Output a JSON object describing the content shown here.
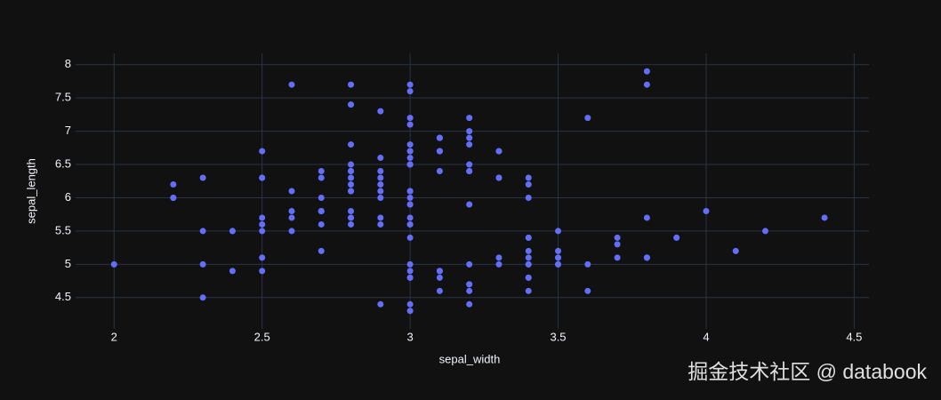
{
  "chart_data": {
    "type": "scatter",
    "x_label": "sepal_width",
    "y_label": "sepal_length",
    "watermark": "掘金技术社区 @ databook",
    "color": "#636efa",
    "grid": true,
    "xlim": [
      1.87,
      4.55
    ],
    "xticks": [
      2,
      2.5,
      3,
      3.5,
      4,
      4.5
    ],
    "ylim": [
      4.03,
      8.17
    ],
    "yticks": [
      4.5,
      5,
      5.5,
      6,
      6.5,
      7,
      7.5,
      8
    ],
    "x": [
      3.5,
      3.0,
      3.2,
      3.1,
      3.6,
      3.9,
      3.4,
      3.4,
      2.9,
      3.1,
      3.7,
      3.4,
      3.0,
      3.0,
      4.0,
      4.4,
      3.9,
      3.5,
      3.8,
      3.8,
      3.4,
      3.7,
      3.6,
      3.3,
      3.4,
      3.0,
      3.4,
      3.5,
      3.4,
      3.2,
      3.1,
      3.4,
      4.1,
      4.2,
      3.1,
      3.2,
      3.5,
      3.1,
      3.0,
      3.4,
      3.5,
      2.3,
      3.2,
      3.5,
      3.8,
      3.0,
      3.8,
      3.2,
      3.7,
      3.3,
      3.2,
      3.2,
      3.1,
      2.3,
      2.8,
      2.8,
      3.3,
      2.4,
      2.9,
      2.7,
      2.0,
      3.0,
      2.2,
      2.9,
      2.9,
      3.1,
      3.0,
      2.7,
      2.2,
      2.5,
      3.2,
      2.8,
      2.5,
      2.8,
      2.9,
      3.0,
      2.8,
      3.0,
      2.9,
      2.6,
      2.4,
      2.4,
      2.7,
      2.7,
      3.0,
      3.4,
      3.1,
      2.3,
      3.0,
      2.5,
      2.6,
      3.0,
      2.6,
      2.3,
      2.7,
      3.0,
      2.9,
      2.9,
      2.5,
      2.8,
      3.3,
      2.7,
      3.0,
      2.9,
      3.0,
      3.0,
      2.5,
      2.9,
      2.5,
      3.6,
      3.2,
      2.7,
      3.0,
      2.5,
      2.8,
      3.2,
      3.0,
      3.8,
      2.6,
      2.2,
      3.2,
      2.8,
      2.8,
      2.7,
      3.3,
      3.2,
      2.8,
      3.0,
      2.8,
      3.0,
      2.8,
      3.8,
      2.8,
      2.8,
      2.6,
      3.0,
      3.4,
      3.1,
      3.0,
      3.1,
      3.1,
      3.1,
      2.7,
      3.2,
      3.3,
      3.0,
      2.5,
      3.0,
      3.4,
      3.0
    ],
    "y": [
      5.1,
      4.9,
      4.7,
      4.6,
      5.0,
      5.4,
      4.6,
      5.0,
      4.4,
      4.9,
      5.4,
      4.8,
      4.8,
      4.3,
      5.8,
      5.7,
      5.4,
      5.1,
      5.7,
      5.1,
      5.4,
      5.1,
      4.6,
      5.1,
      4.8,
      5.0,
      5.0,
      5.2,
      5.2,
      4.7,
      4.8,
      5.4,
      5.2,
      5.5,
      4.9,
      5.0,
      5.5,
      4.9,
      4.4,
      5.1,
      5.0,
      4.5,
      4.4,
      5.0,
      5.1,
      4.8,
      5.1,
      4.6,
      5.3,
      5.0,
      7.0,
      6.4,
      6.9,
      5.5,
      6.5,
      5.7,
      6.3,
      4.9,
      6.6,
      5.2,
      5.0,
      5.9,
      6.0,
      6.1,
      5.6,
      6.7,
      5.6,
      5.8,
      6.2,
      5.6,
      5.9,
      6.1,
      6.3,
      6.1,
      6.4,
      6.6,
      6.8,
      6.7,
      6.0,
      5.7,
      5.5,
      5.5,
      5.8,
      6.0,
      5.4,
      6.0,
      6.7,
      6.3,
      5.6,
      5.5,
      5.5,
      6.1,
      5.8,
      5.0,
      5.6,
      5.7,
      5.7,
      6.2,
      5.1,
      5.7,
      6.3,
      5.8,
      7.1,
      6.3,
      6.5,
      7.6,
      4.9,
      7.3,
      6.7,
      7.2,
      6.5,
      6.4,
      6.8,
      5.7,
      5.8,
      6.4,
      6.5,
      7.7,
      7.7,
      6.0,
      6.9,
      5.6,
      7.7,
      6.3,
      6.7,
      7.2,
      6.2,
      6.1,
      6.4,
      7.2,
      7.4,
      7.9,
      6.4,
      6.3,
      6.1,
      7.7,
      6.3,
      6.4,
      6.0,
      6.9,
      6.7,
      6.9,
      5.8,
      6.8,
      6.7,
      6.7,
      6.3,
      6.5,
      6.2,
      5.9
    ]
  }
}
